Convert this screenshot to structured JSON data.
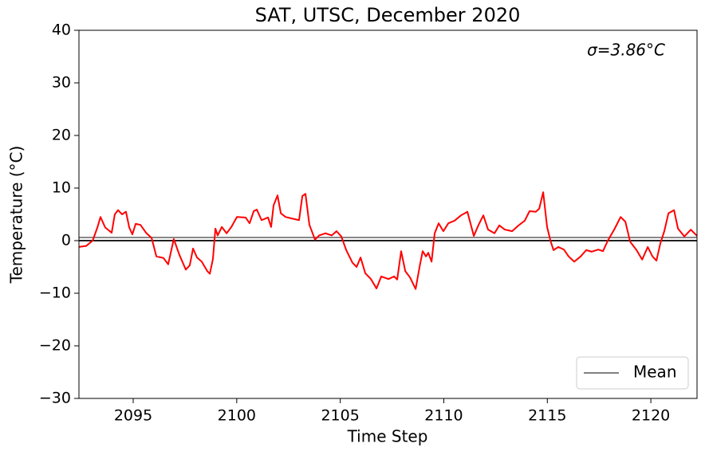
{
  "chart_data": {
    "type": "line",
    "title": "SAT, UTSC, December 2020",
    "xlabel": "Time Step",
    "ylabel": "Temperature (°C)",
    "annotation": {
      "text": "σ=3.86°C",
      "color": "#ff0000"
    },
    "xlim": [
      2092.38,
      2122.23
    ],
    "xticks": [
      2095,
      2100,
      2105,
      2110,
      2115,
      2120
    ],
    "ylim": [
      -30,
      40
    ],
    "yticks": [
      -30,
      -20,
      -10,
      0,
      10,
      20,
      30,
      40
    ],
    "legend": "lower right",
    "x": [
      2092.38,
      2092.73,
      2093.04,
      2093.27,
      2093.42,
      2093.65,
      2093.96,
      2094.11,
      2094.27,
      2094.46,
      2094.65,
      2094.81,
      2094.96,
      2095.12,
      2095.35,
      2095.62,
      2095.89,
      2096.12,
      2096.46,
      2096.69,
      2096.96,
      2097.23,
      2097.54,
      2097.73,
      2097.89,
      2098.08,
      2098.31,
      2098.58,
      2098.7,
      2098.85,
      2098.97,
      2099.08,
      2099.28,
      2099.51,
      2099.74,
      2100.01,
      2100.43,
      2100.62,
      2100.82,
      2100.97,
      2101.2,
      2101.51,
      2101.66,
      2101.78,
      2101.97,
      2102.13,
      2102.36,
      2102.67,
      2103.01,
      2103.17,
      2103.32,
      2103.51,
      2103.78,
      2103.98,
      2104.28,
      2104.59,
      2104.82,
      2105.05,
      2105.29,
      2105.59,
      2105.79,
      2105.98,
      2106.21,
      2106.48,
      2106.75,
      2106.98,
      2107.33,
      2107.6,
      2107.75,
      2107.94,
      2108.14,
      2108.37,
      2108.64,
      2108.83,
      2108.98,
      2109.14,
      2109.25,
      2109.41,
      2109.56,
      2109.75,
      2109.98,
      2110.22,
      2110.52,
      2110.83,
      2111.14,
      2111.45,
      2111.68,
      2111.91,
      2112.14,
      2112.45,
      2112.68,
      2112.95,
      2113.3,
      2113.61,
      2113.91,
      2114.14,
      2114.45,
      2114.61,
      2114.8,
      2114.99,
      2115.15,
      2115.3,
      2115.53,
      2115.8,
      2116.03,
      2116.3,
      2116.61,
      2116.88,
      2117.15,
      2117.46,
      2117.69,
      2117.92,
      2118.23,
      2118.54,
      2118.77,
      2119.0,
      2119.31,
      2119.58,
      2119.85,
      2120.08,
      2120.27,
      2120.46,
      2120.65,
      2120.85,
      2121.12,
      2121.31,
      2121.62,
      2121.93,
      2122.23
    ],
    "series": [
      {
        "color": "#ff0000",
        "values": [
          -1.2,
          -1,
          0,
          2.5,
          4.5,
          2.5,
          1.5,
          5,
          5.8,
          5,
          5.5,
          2.5,
          1.2,
          3.2,
          3,
          1.5,
          0.5,
          -3,
          -3.3,
          -4.5,
          0.3,
          -2.7,
          -5.5,
          -4.7,
          -1.5,
          -3.2,
          -4,
          -5.8,
          -6.3,
          -3.5,
          2.3,
          1,
          2.6,
          1.4,
          2.6,
          4.5,
          4.4,
          3.3,
          5.6,
          5.9,
          3.9,
          4.4,
          2.6,
          6.7,
          8.6,
          5.2,
          4.5,
          4.2,
          3.9,
          8.5,
          8.9,
          3,
          0.2,
          1,
          1.4,
          1,
          1.8,
          0.8,
          -1.8,
          -4.2,
          -5,
          -3.2,
          -6.2,
          -7.3,
          -9.1,
          -6.8,
          -7.3,
          -6.8,
          -7.4,
          -2,
          -5.8,
          -7,
          -9.2,
          -5,
          -2,
          -3,
          -2.3,
          -4,
          1.4,
          3.3,
          1.8,
          3.3,
          3.8,
          4.8,
          5.5,
          0.9,
          3,
          4.8,
          2.1,
          1.4,
          2.9,
          2.1,
          1.8,
          2.9,
          3.8,
          5.6,
          5.5,
          6.1,
          9.2,
          2.6,
          0,
          -1.8,
          -1.2,
          -1.7,
          -3,
          -4,
          -3,
          -1.8,
          -2.1,
          -1.7,
          -2,
          0,
          2.1,
          4.5,
          3.6,
          -0.2,
          -1.8,
          -3.6,
          -1.2,
          -3,
          -3.8,
          -0.5,
          1.8,
          5.2,
          5.8,
          2.3,
          0.8,
          2.1,
          0.9
        ]
      }
    ],
    "hlines": [
      {
        "name": "Mean",
        "value": 0.6,
        "color": "#808080"
      },
      {
        "value": 0,
        "color": "#000000"
      }
    ]
  }
}
